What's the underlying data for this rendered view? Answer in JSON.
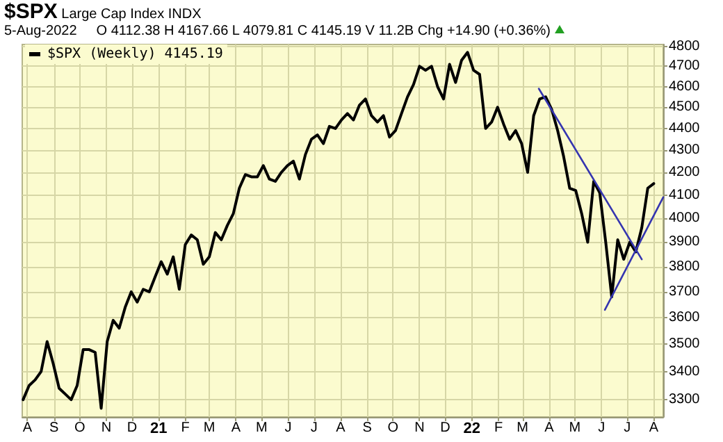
{
  "chart_data": {
    "type": "line",
    "title": "$SPX",
    "subtitle": "Large Cap Index INDX",
    "annotations": [
      "5-Aug-2022",
      "O 4112.38 H 4167.66 L 4079.81 C 4145.19 V 11.2B Chg +14.90 (+0.36%)"
    ],
    "series": [
      {
        "name": "$SPX (Weekly) 4145.19",
        "color": "#000000",
        "x": [
          "2020-07-27",
          "2020-08-03",
          "2020-08-10",
          "2020-08-17",
          "2020-08-24",
          "2020-08-31",
          "2020-09-07",
          "2020-09-14",
          "2020-09-21",
          "2020-09-28",
          "2020-10-05",
          "2020-10-12",
          "2020-10-19",
          "2020-10-26",
          "2020-11-02",
          "2020-11-09",
          "2020-11-16",
          "2020-11-23",
          "2020-11-30",
          "2020-12-07",
          "2020-12-14",
          "2020-12-21",
          "2020-12-28",
          "2021-01-04",
          "2021-01-11",
          "2021-01-18",
          "2021-01-25",
          "2021-02-01",
          "2021-02-08",
          "2021-02-15",
          "2021-02-22",
          "2021-03-01",
          "2021-03-08",
          "2021-03-15",
          "2021-03-22",
          "2021-03-29",
          "2021-04-05",
          "2021-04-12",
          "2021-04-19",
          "2021-04-26",
          "2021-05-03",
          "2021-05-10",
          "2021-05-17",
          "2021-05-24",
          "2021-05-31",
          "2021-06-07",
          "2021-06-14",
          "2021-06-21",
          "2021-06-28",
          "2021-07-05",
          "2021-07-12",
          "2021-07-19",
          "2021-07-26",
          "2021-08-02",
          "2021-08-09",
          "2021-08-16",
          "2021-08-23",
          "2021-08-30",
          "2021-09-06",
          "2021-09-13",
          "2021-09-20",
          "2021-09-27",
          "2021-10-04",
          "2021-10-11",
          "2021-10-18",
          "2021-10-25",
          "2021-11-01",
          "2021-11-08",
          "2021-11-15",
          "2021-11-22",
          "2021-11-29",
          "2021-12-06",
          "2021-12-13",
          "2021-12-20",
          "2021-12-27",
          "2022-01-03",
          "2022-01-10",
          "2022-01-17",
          "2022-01-24",
          "2022-01-31",
          "2022-02-07",
          "2022-02-14",
          "2022-02-21",
          "2022-02-28",
          "2022-03-07",
          "2022-03-14",
          "2022-03-21",
          "2022-03-28",
          "2022-04-04",
          "2022-04-11",
          "2022-04-18",
          "2022-04-25",
          "2022-05-02",
          "2022-05-09",
          "2022-05-16",
          "2022-05-23",
          "2022-05-30",
          "2022-06-06",
          "2022-06-13",
          "2022-06-20",
          "2022-06-27",
          "2022-07-04",
          "2022-07-11",
          "2022-07-18",
          "2022-07-25",
          "2022-08-01"
        ],
        "values": [
          3300,
          3350,
          3370,
          3400,
          3510,
          3430,
          3340,
          3320,
          3300,
          3350,
          3480,
          3480,
          3470,
          3270,
          3510,
          3590,
          3560,
          3640,
          3700,
          3660,
          3710,
          3700,
          3760,
          3820,
          3770,
          3840,
          3710,
          3890,
          3930,
          3910,
          3810,
          3840,
          3940,
          3910,
          3970,
          4020,
          4130,
          4190,
          4180,
          4180,
          4230,
          4170,
          4160,
          4200,
          4230,
          4250,
          4170,
          4280,
          4350,
          4370,
          4330,
          4410,
          4400,
          4440,
          4470,
          4440,
          4510,
          4540,
          4460,
          4430,
          4460,
          4360,
          4390,
          4470,
          4550,
          4610,
          4700,
          4680,
          4700,
          4600,
          4540,
          4710,
          4620,
          4730,
          4770,
          4680,
          4660,
          4400,
          4430,
          4500,
          4420,
          4350,
          4390,
          4330,
          4200,
          4460,
          4540,
          4550,
          4490,
          4390,
          4270,
          4130,
          4120,
          4020,
          3900,
          4160,
          4110,
          3900,
          3680,
          3910,
          3830,
          3900,
          3860,
          3960,
          4130,
          4150
        ]
      },
      {
        "type": "line",
        "color": "#3535b0",
        "x": [
          "2022-03-20",
          "2022-07-18"
        ],
        "values": [
          4590,
          3830
        ]
      },
      {
        "type": "line",
        "color": "#3535b0",
        "x": [
          "2022-06-05",
          "2022-08-12"
        ],
        "values": [
          3630,
          4090
        ]
      }
    ],
    "xlim": [
      "2020-07-26",
      "2022-08-12"
    ],
    "xticks": [
      {
        "value": "2020-08-01",
        "label": "A"
      },
      {
        "value": "2020-09-01",
        "label": "S"
      },
      {
        "value": "2020-10-01",
        "label": "O"
      },
      {
        "value": "2020-11-01",
        "label": "N"
      },
      {
        "value": "2020-12-01",
        "label": "D"
      },
      {
        "value": "2021-01-01",
        "label": "21"
      },
      {
        "value": "2021-02-01",
        "label": "F"
      },
      {
        "value": "2021-03-01",
        "label": "M"
      },
      {
        "value": "2021-04-01",
        "label": "A"
      },
      {
        "value": "2021-05-01",
        "label": "M"
      },
      {
        "value": "2021-06-01",
        "label": "J"
      },
      {
        "value": "2021-07-01",
        "label": "J"
      },
      {
        "value": "2021-08-01",
        "label": "A"
      },
      {
        "value": "2021-09-01",
        "label": "S"
      },
      {
        "value": "2021-10-01",
        "label": "O"
      },
      {
        "value": "2021-11-01",
        "label": "N"
      },
      {
        "value": "2021-12-01",
        "label": "D"
      },
      {
        "value": "2022-01-01",
        "label": "22"
      },
      {
        "value": "2022-02-01",
        "label": "F"
      },
      {
        "value": "2022-03-01",
        "label": "M"
      },
      {
        "value": "2022-04-01",
        "label": "A"
      },
      {
        "value": "2022-05-01",
        "label": "M"
      },
      {
        "value": "2022-06-01",
        "label": "J"
      },
      {
        "value": "2022-07-01",
        "label": "J"
      },
      {
        "value": "2022-08-01",
        "label": "A"
      }
    ],
    "ylim": [
      3240,
      4810
    ],
    "yticks": [
      3300,
      3400,
      3500,
      3600,
      3700,
      3800,
      3900,
      4000,
      4100,
      4200,
      4300,
      4400,
      4500,
      4600,
      4700,
      4800
    ],
    "log": "y",
    "grid": true,
    "legend": "top left",
    "marker": "none"
  }
}
